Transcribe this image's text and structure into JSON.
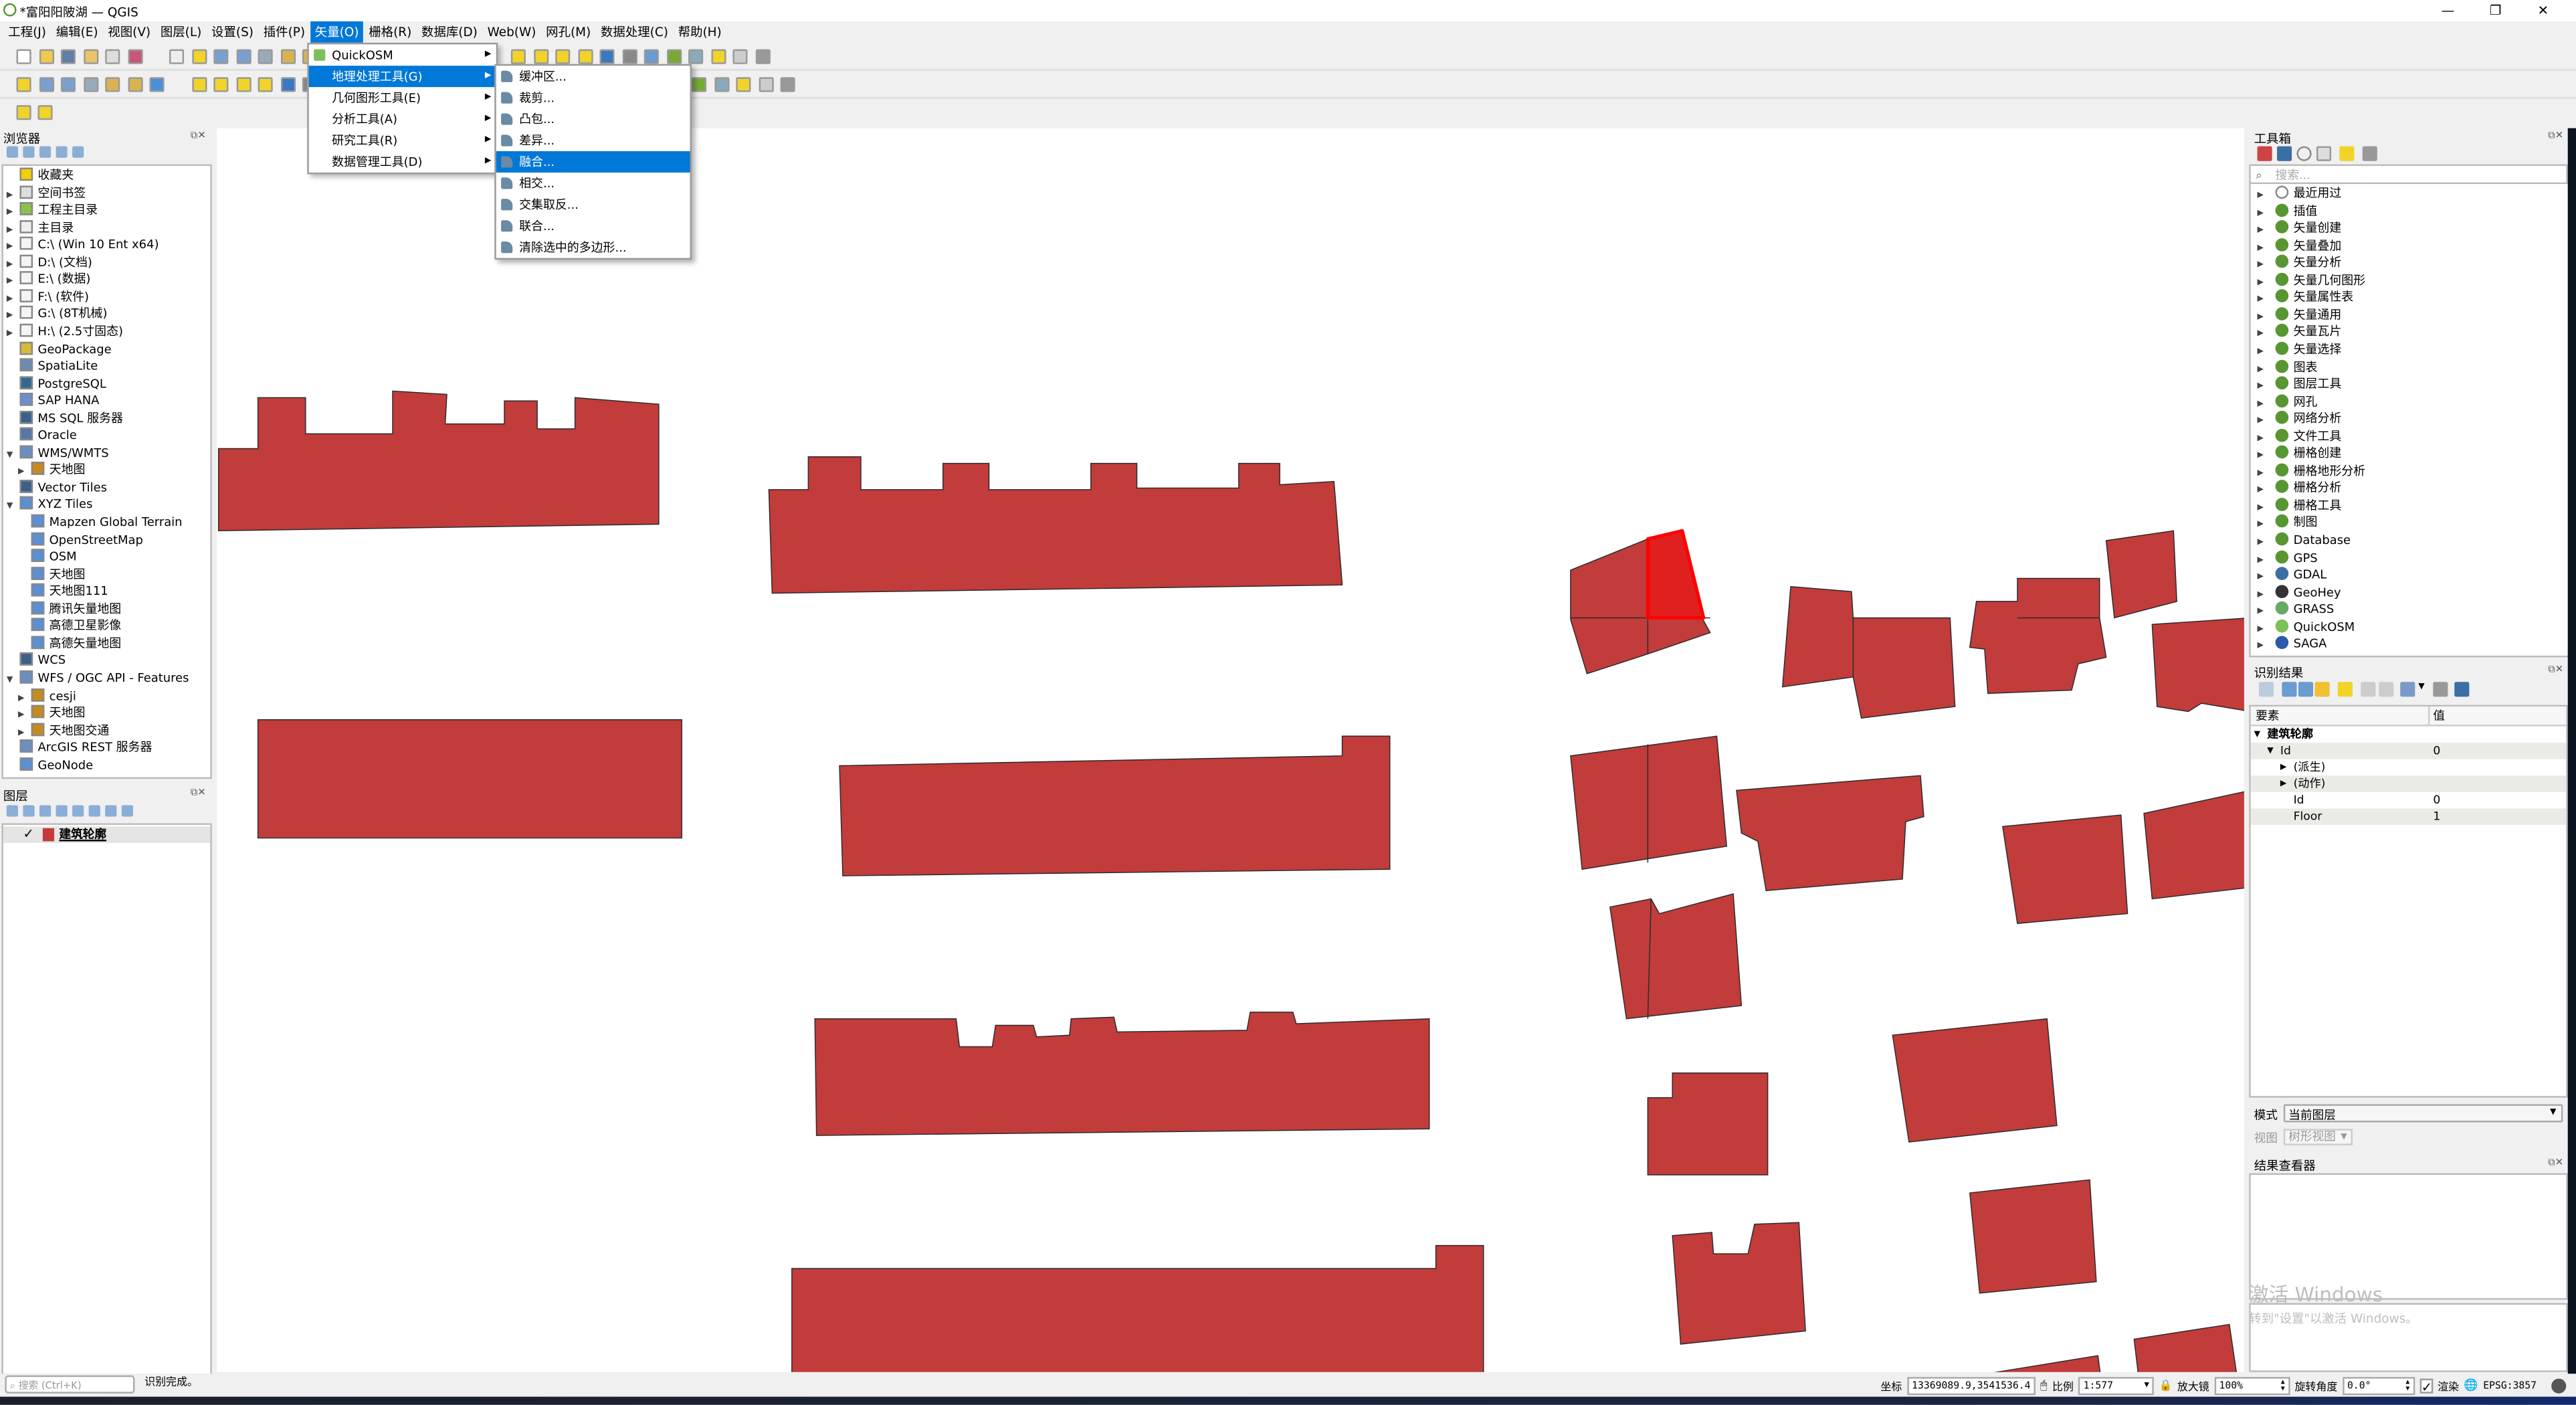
{
  "window": {
    "title": "*富阳阳陂湖 — QGIS",
    "controls": [
      "minimize",
      "restore",
      "close"
    ]
  },
  "menubar": {
    "items": [
      "工程(J)",
      "编辑(E)",
      "视图(V)",
      "图层(L)",
      "设置(S)",
      "插件(P)",
      "矢量(O)",
      "栅格(R)",
      "数据库(D)",
      "Web(W)",
      "网孔(M)",
      "数据处理(C)",
      "帮助(H)"
    ],
    "active": "矢量(O)"
  },
  "vector_menu": {
    "items": [
      {
        "label": "QuickOSM",
        "icon": "quickosm-icon",
        "submenu": true
      },
      {
        "label": "地理处理工具(G)",
        "submenu": true,
        "highlighted": true
      },
      {
        "label": "几何图形工具(E)",
        "submenu": true
      },
      {
        "label": "分析工具(A)",
        "submenu": true
      },
      {
        "label": "研究工具(R)",
        "submenu": true
      },
      {
        "label": "数据管理工具(D)",
        "submenu": true
      }
    ]
  },
  "geoprocessing_menu": {
    "items": [
      {
        "label": "缓冲区...",
        "icon": "buffer-icon"
      },
      {
        "label": "裁剪...",
        "icon": "clip-icon"
      },
      {
        "label": "凸包...",
        "icon": "convex-hull-icon"
      },
      {
        "label": "差异...",
        "icon": "difference-icon"
      },
      {
        "label": "融合...",
        "icon": "dissolve-icon",
        "highlighted": true
      },
      {
        "label": "相交...",
        "icon": "intersection-icon"
      },
      {
        "label": "交集取反...",
        "icon": "symmetric-difference-icon"
      },
      {
        "label": "联合...",
        "icon": "union-icon"
      },
      {
        "label": "清除选中的多边形...",
        "icon": "eliminate-icon"
      }
    ]
  },
  "toolbars": {
    "row1": [
      "new-project-icon",
      "open-project-icon",
      "save-project-icon",
      "save-as-icon",
      "print-layout-icon",
      "style-manager-icon",
      "pan-icon",
      "pan-to-selection-icon",
      "zoom-in-icon",
      "zoom-out-icon",
      "zoom-full-icon",
      "zoom-selection-icon",
      "zoom-layer-icon",
      "refresh-icon",
      "select-features-icon",
      "select-by-value-icon",
      "deselect-icon",
      "select-location-icon",
      "identify-icon",
      "attribute-table-icon",
      "processing-icon",
      "sum-icon",
      "measure-icon",
      "map-tips-icon",
      "annotation-icon",
      "settings-icon"
    ],
    "row2": [
      "data-source-manager-icon",
      "new-geopackage-icon",
      "new-shapefile-icon",
      "new-spatialite-icon",
      "new-virtual-layer-icon",
      "new-mesh-icon",
      "new-temp-layer-icon",
      "current-edits-icon",
      "toggle-editing-icon",
      "save-edits-icon",
      "digitize-icon",
      "add-polygon-icon",
      "label-icon",
      "label-pin-icon",
      "globe-icon",
      "globe2-icon",
      "globe3-icon",
      "python-icon",
      "book-icon"
    ],
    "row3": [
      "quickosm-icon",
      "geohey-icon"
    ]
  },
  "browser": {
    "title": "浏览器",
    "tools": [
      "add-selected-icon",
      "refresh-icon",
      "filter-icon",
      "collapse-icon",
      "info-icon"
    ],
    "items": [
      {
        "label": "收藏夹",
        "icon": "star-icon",
        "expander": "",
        "depth": 0
      },
      {
        "label": "空间书签",
        "icon": "bookmark-icon",
        "expander": "right",
        "depth": 0
      },
      {
        "label": "工程主目录",
        "icon": "project-home-icon",
        "expander": "right",
        "depth": 0
      },
      {
        "label": "主目录",
        "icon": "home-icon",
        "expander": "right",
        "depth": 0
      },
      {
        "label": "C:\\ (Win 10 Ent x64)",
        "icon": "folder-icon",
        "expander": "right",
        "depth": 0
      },
      {
        "label": "D:\\ (文档)",
        "icon": "folder-icon",
        "expander": "right",
        "depth": 0
      },
      {
        "label": "E:\\ (数据)",
        "icon": "folder-icon",
        "expander": "right",
        "depth": 0
      },
      {
        "label": "F:\\ (软件)",
        "icon": "folder-icon",
        "expander": "right",
        "depth": 0
      },
      {
        "label": "G:\\ (8T机械)",
        "icon": "folder-icon",
        "expander": "right",
        "depth": 0
      },
      {
        "label": "H:\\ (2.5寸固态)",
        "icon": "folder-icon",
        "expander": "right",
        "depth": 0
      },
      {
        "label": "GeoPackage",
        "icon": "geopackage-icon",
        "expander": "",
        "depth": 0
      },
      {
        "label": "SpatiaLite",
        "icon": "spatialite-icon",
        "expander": "",
        "depth": 0
      },
      {
        "label": "PostgreSQL",
        "icon": "postgresql-icon",
        "expander": "",
        "depth": 0
      },
      {
        "label": "SAP HANA",
        "icon": "sap-hana-icon",
        "expander": "",
        "depth": 0
      },
      {
        "label": "MS SQL 服务器",
        "icon": "mssql-icon",
        "expander": "",
        "depth": 0
      },
      {
        "label": "Oracle",
        "icon": "oracle-icon",
        "expander": "",
        "depth": 0
      },
      {
        "label": "WMS/WMTS",
        "icon": "wms-icon",
        "expander": "down",
        "depth": 0
      },
      {
        "label": "天地图",
        "icon": "connection-icon",
        "expander": "right",
        "depth": 1
      },
      {
        "label": "Vector Tiles",
        "icon": "vector-tiles-icon",
        "expander": "",
        "depth": 0
      },
      {
        "label": "XYZ Tiles",
        "icon": "xyz-tiles-icon",
        "expander": "down",
        "depth": 0
      },
      {
        "label": "Mapzen Global Terrain",
        "icon": "xyz-tiles-icon",
        "expander": "",
        "depth": 1
      },
      {
        "label": "OpenStreetMap",
        "icon": "xyz-tiles-icon",
        "expander": "",
        "depth": 1
      },
      {
        "label": "OSM",
        "icon": "xyz-tiles-icon",
        "expander": "",
        "depth": 1
      },
      {
        "label": "天地图",
        "icon": "xyz-tiles-icon",
        "expander": "",
        "depth": 1
      },
      {
        "label": "天地图111",
        "icon": "xyz-tiles-icon",
        "expander": "",
        "depth": 1
      },
      {
        "label": "腾讯矢量地图",
        "icon": "xyz-tiles-icon",
        "expander": "",
        "depth": 1
      },
      {
        "label": "高德卫星影像",
        "icon": "xyz-tiles-icon",
        "expander": "",
        "depth": 1
      },
      {
        "label": "高德矢量地图",
        "icon": "xyz-tiles-icon",
        "expander": "",
        "depth": 1
      },
      {
        "label": "WCS",
        "icon": "wcs-icon",
        "expander": "",
        "depth": 0
      },
      {
        "label": "WFS / OGC API - Features",
        "icon": "wfs-icon",
        "expander": "down",
        "depth": 0
      },
      {
        "label": "cesji",
        "icon": "connection-icon",
        "expander": "right",
        "depth": 1
      },
      {
        "label": "天地图",
        "icon": "connection-icon",
        "expander": "right",
        "depth": 1
      },
      {
        "label": "天地图交通",
        "icon": "connection-icon",
        "expander": "right",
        "depth": 1
      },
      {
        "label": "ArcGIS REST 服务器",
        "icon": "arcgis-icon",
        "expander": "",
        "depth": 0
      },
      {
        "label": "GeoNode",
        "icon": "geonode-icon",
        "expander": "",
        "depth": 0
      }
    ]
  },
  "layers": {
    "title": "图层",
    "tools": [
      "style-icon",
      "add-group-icon",
      "visibility-icon",
      "filter-legend-icon",
      "expression-filter-icon",
      "expand-icon",
      "collapse-icon",
      "remove-layer-icon"
    ],
    "items": [
      {
        "label": "建筑轮廓",
        "checked": true,
        "icon": "editable-polygon-layer-icon"
      }
    ]
  },
  "map": {
    "fill": "#c13c3b",
    "stroke": "#2b2b2b",
    "selected_fill": "#e01f1f",
    "selected_stroke": "#ff0000"
  },
  "toolbox": {
    "title": "工具箱",
    "search_placeholder": "搜索...",
    "items": [
      {
        "label": "最近用过",
        "icon": "clock-icon"
      },
      {
        "label": "插值",
        "icon": "qgis-icon"
      },
      {
        "label": "矢量创建",
        "icon": "qgis-icon"
      },
      {
        "label": "矢量叠加",
        "icon": "qgis-icon"
      },
      {
        "label": "矢量分析",
        "icon": "qgis-icon"
      },
      {
        "label": "矢量几何图形",
        "icon": "qgis-icon"
      },
      {
        "label": "矢量属性表",
        "icon": "qgis-icon"
      },
      {
        "label": "矢量通用",
        "icon": "qgis-icon"
      },
      {
        "label": "矢量瓦片",
        "icon": "qgis-icon"
      },
      {
        "label": "矢量选择",
        "icon": "qgis-icon"
      },
      {
        "label": "图表",
        "icon": "qgis-icon"
      },
      {
        "label": "图层工具",
        "icon": "qgis-icon"
      },
      {
        "label": "网孔",
        "icon": "qgis-icon"
      },
      {
        "label": "网络分析",
        "icon": "qgis-icon"
      },
      {
        "label": "文件工具",
        "icon": "qgis-icon"
      },
      {
        "label": "栅格创建",
        "icon": "qgis-icon"
      },
      {
        "label": "栅格地形分析",
        "icon": "qgis-icon"
      },
      {
        "label": "栅格分析",
        "icon": "qgis-icon"
      },
      {
        "label": "栅格工具",
        "icon": "qgis-icon"
      },
      {
        "label": "制图",
        "icon": "qgis-icon"
      },
      {
        "label": "Database",
        "icon": "qgis-icon"
      },
      {
        "label": "GPS",
        "icon": "qgis-icon"
      },
      {
        "label": "GDAL",
        "icon": "gdal-icon"
      },
      {
        "label": "GeoHey",
        "icon": "geohey-icon"
      },
      {
        "label": "GRASS",
        "icon": "grass-icon"
      },
      {
        "label": "QuickOSM",
        "icon": "quickosm-icon"
      },
      {
        "label": "SAGA",
        "icon": "saga-icon"
      }
    ]
  },
  "identify": {
    "title": "识别结果",
    "columns": [
      "要素",
      "值"
    ],
    "rows": [
      {
        "label": "建筑轮廓",
        "value": "",
        "level": 0,
        "expander": "down",
        "bold": true
      },
      {
        "label": "Id",
        "value": "0",
        "level": 1,
        "expander": "down"
      },
      {
        "label": "(派生)",
        "value": "",
        "level": 2,
        "expander": "right"
      },
      {
        "label": "(动作)",
        "value": "",
        "level": 2,
        "expander": "right"
      },
      {
        "label": "Id",
        "value": "0",
        "level": 2,
        "expander": ""
      },
      {
        "label": "Floor",
        "value": "1",
        "level": 2,
        "expander": ""
      }
    ],
    "mode_label": "模式",
    "mode_value": "当前图层",
    "view_label": "视图",
    "view_value": "树形视图"
  },
  "result_viewer": {
    "title": "结果查看器"
  },
  "watermark": {
    "line1": "激活 Windows",
    "line2": "转到\"设置\"以激活 Windows。"
  },
  "statusbar": {
    "search_placeholder": "搜索 (Ctrl+K)",
    "message": "识别完成。",
    "coord_label": "坐标",
    "coord_value": "13369089.9,3541536.4",
    "scale_label": "比例",
    "scale_value": "1:577",
    "magnifier_label": "放大镜",
    "magnifier_value": "100%",
    "rotation_label": "旋转角度",
    "rotation_value": "0.0°",
    "render_label": "渲染",
    "render_checked": true,
    "crs": "EPSG:3857"
  }
}
